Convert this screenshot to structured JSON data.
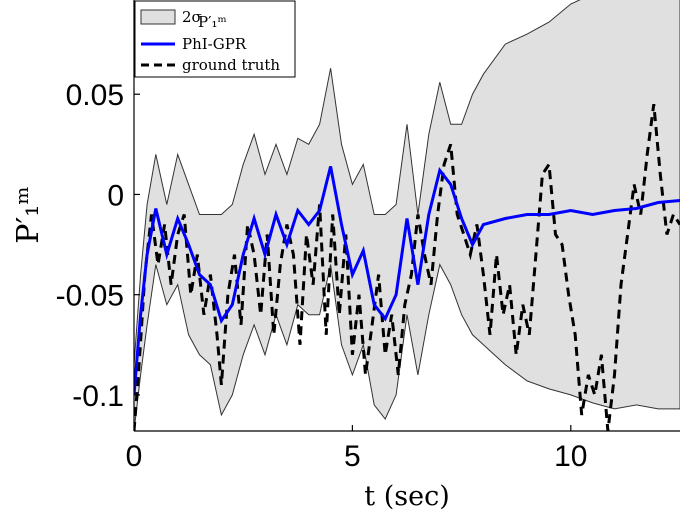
{
  "chart_data": {
    "type": "line",
    "xlabel": "t (sec)",
    "ylabel": "P′₁ᵐ",
    "xlim": [
      0,
      12.5
    ],
    "ylim": [
      -0.118,
      0.097
    ],
    "xticks": [
      0,
      5,
      10
    ],
    "xtick_labels": [
      "0",
      "5",
      "10"
    ],
    "yticks": [
      0.05,
      0,
      -0.05,
      -0.1
    ],
    "ytick_labels": [
      "0.05",
      "0",
      "-0.05",
      "-0.1"
    ],
    "grid": false,
    "legend_position": "top-left",
    "legend": {
      "band": "2σ",
      "band_sub": "P′₁ᵐ",
      "mean": "PhI-GPR",
      "truth": "ground truth"
    },
    "colors": {
      "band": "#e0e0e0",
      "band_edge": "#333333",
      "mean": "#0000ff",
      "truth": "#000000"
    },
    "series": [
      {
        "name": "PhI-GPR",
        "style": "solid",
        "x": [
          0,
          0.15,
          0.3,
          0.5,
          0.75,
          1.0,
          1.25,
          1.5,
          1.75,
          2.0,
          2.25,
          2.5,
          2.75,
          3.0,
          3.25,
          3.5,
          3.75,
          4.0,
          4.25,
          4.5,
          4.75,
          5.0,
          5.25,
          5.5,
          5.75,
          6.0,
          6.25,
          6.5,
          6.75,
          7.0,
          7.25,
          7.5,
          7.75,
          8.0,
          8.5,
          9.0,
          9.5,
          10.0,
          10.5,
          11.0,
          11.5,
          12.0,
          12.5
        ],
        "y": [
          -0.1,
          -0.06,
          -0.03,
          -0.007,
          -0.03,
          -0.012,
          -0.025,
          -0.04,
          -0.045,
          -0.063,
          -0.055,
          -0.03,
          -0.012,
          -0.03,
          -0.01,
          -0.025,
          -0.008,
          -0.015,
          -0.008,
          0.014,
          -0.015,
          -0.04,
          -0.028,
          -0.055,
          -0.062,
          -0.05,
          -0.012,
          -0.045,
          -0.01,
          0.012,
          0.005,
          -0.012,
          -0.025,
          -0.015,
          -0.012,
          -0.01,
          -0.01,
          -0.008,
          -0.01,
          -0.008,
          -0.007,
          -0.004,
          -0.003
        ]
      },
      {
        "name": "ground truth",
        "style": "dashed",
        "x": [
          0,
          0.1,
          0.25,
          0.4,
          0.55,
          0.7,
          0.85,
          1.0,
          1.15,
          1.3,
          1.45,
          1.6,
          1.75,
          1.9,
          2.0,
          2.15,
          2.3,
          2.45,
          2.6,
          2.75,
          2.9,
          3.05,
          3.2,
          3.35,
          3.5,
          3.65,
          3.8,
          3.95,
          4.1,
          4.25,
          4.4,
          4.55,
          4.7,
          4.85,
          5.0,
          5.15,
          5.3,
          5.45,
          5.6,
          5.75,
          5.9,
          6.05,
          6.2,
          6.35,
          6.5,
          6.65,
          6.8,
          6.95,
          7.1,
          7.25,
          7.4,
          7.55,
          7.7,
          7.85,
          8.0,
          8.15,
          8.3,
          8.45,
          8.6,
          8.75,
          8.9,
          9.05,
          9.2,
          9.35,
          9.5,
          9.65,
          9.8,
          9.95,
          10.1,
          10.25,
          10.4,
          10.55,
          10.7,
          10.85,
          11.0,
          11.15,
          11.3,
          11.45,
          11.6,
          11.75,
          11.9,
          12.05,
          12.2,
          12.35,
          12.5
        ],
        "y": [
          -0.118,
          -0.09,
          -0.04,
          -0.01,
          -0.035,
          -0.015,
          -0.045,
          -0.02,
          -0.01,
          -0.05,
          -0.03,
          -0.06,
          -0.04,
          -0.07,
          -0.095,
          -0.05,
          -0.03,
          -0.065,
          -0.015,
          -0.03,
          -0.06,
          -0.02,
          -0.07,
          -0.035,
          -0.015,
          -0.03,
          -0.075,
          -0.02,
          -0.045,
          -0.005,
          -0.07,
          -0.01,
          -0.06,
          -0.02,
          -0.08,
          -0.05,
          -0.09,
          -0.065,
          -0.04,
          -0.08,
          -0.06,
          -0.09,
          -0.055,
          -0.04,
          -0.01,
          -0.03,
          -0.045,
          -0.01,
          0.015,
          0.025,
          -0.01,
          -0.02,
          -0.03,
          -0.015,
          -0.04,
          -0.07,
          -0.03,
          -0.06,
          -0.045,
          -0.08,
          -0.055,
          -0.07,
          -0.03,
          0.01,
          0.015,
          -0.02,
          -0.025,
          -0.05,
          -0.07,
          -0.11,
          -0.09,
          -0.1,
          -0.08,
          -0.118,
          -0.09,
          -0.045,
          -0.02,
          0.005,
          -0.01,
          0.02,
          0.045,
          0.01,
          -0.02,
          -0.01,
          -0.015
        ]
      }
    ],
    "band": {
      "name": "2σ",
      "x": [
        0,
        0.15,
        0.3,
        0.5,
        0.75,
        1.0,
        1.25,
        1.5,
        1.75,
        2.0,
        2.25,
        2.5,
        2.75,
        3.0,
        3.25,
        3.5,
        3.75,
        4.0,
        4.25,
        4.5,
        4.75,
        5.0,
        5.25,
        5.5,
        5.75,
        6.0,
        6.25,
        6.5,
        6.75,
        7.0,
        7.25,
        7.5,
        7.75,
        8.0,
        8.5,
        9.0,
        9.5,
        10.0,
        10.5,
        11.0,
        11.5,
        12.0,
        12.5
      ],
      "upper": [
        -0.085,
        -0.04,
        -0.005,
        0.02,
        -0.005,
        0.02,
        0.005,
        -0.01,
        -0.01,
        -0.01,
        -0.005,
        0.015,
        0.03,
        0.01,
        0.025,
        0.01,
        0.028,
        0.025,
        0.035,
        0.063,
        0.025,
        0.005,
        0.015,
        -0.01,
        -0.01,
        -0.005,
        0.035,
        -0.01,
        0.03,
        0.056,
        0.035,
        0.035,
        0.05,
        0.06,
        0.075,
        0.08,
        0.086,
        0.095,
        0.1,
        0.1,
        0.1,
        0.1,
        0.1
      ],
      "lower": [
        -0.118,
        -0.09,
        -0.065,
        -0.035,
        -0.055,
        -0.045,
        -0.07,
        -0.08,
        -0.085,
        -0.11,
        -0.1,
        -0.08,
        -0.065,
        -0.08,
        -0.06,
        -0.075,
        -0.055,
        -0.06,
        -0.06,
        -0.035,
        -0.075,
        -0.09,
        -0.075,
        -0.105,
        -0.112,
        -0.1,
        -0.06,
        -0.09,
        -0.06,
        -0.035,
        -0.045,
        -0.06,
        -0.07,
        -0.075,
        -0.085,
        -0.093,
        -0.097,
        -0.1,
        -0.104,
        -0.107,
        -0.105,
        -0.107,
        -0.107
      ]
    }
  }
}
